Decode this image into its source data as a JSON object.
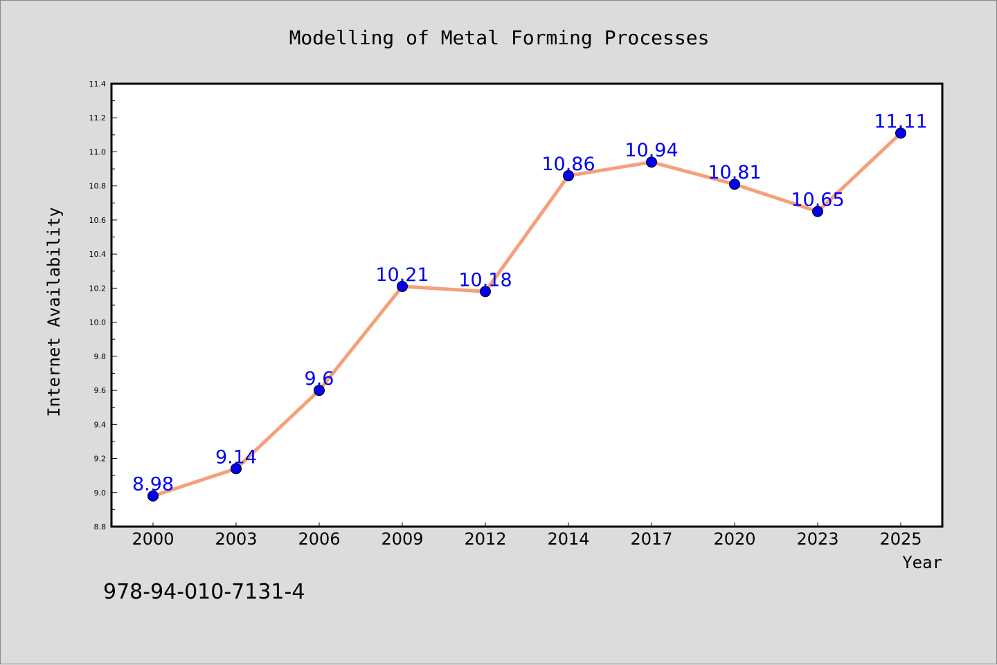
{
  "chart_data": {
    "type": "line",
    "title": "Modelling of Metal Forming Processes",
    "xlabel": "Year",
    "ylabel": "Internet Availability",
    "categories": [
      "2000",
      "2003",
      "2006",
      "2009",
      "2012",
      "2014",
      "2017",
      "2020",
      "2023",
      "2025"
    ],
    "series": [
      {
        "values": [
          8.98,
          9.14,
          9.6,
          10.21,
          10.18,
          10.86,
          10.94,
          10.81,
          10.65,
          11.11
        ],
        "data_labels": [
          "8.98",
          "9.14",
          "9.6",
          "10.21",
          "10.18",
          "10.86",
          "10.94",
          "10.81",
          "10.65",
          "11.11"
        ]
      }
    ],
    "ylim": [
      8.8,
      11.4
    ],
    "yticks": [
      "8.8",
      "9.0",
      "9.2",
      "9.4",
      "9.6",
      "9.8",
      "10.0",
      "10.2",
      "10.4",
      "10.6",
      "10.8",
      "11.0",
      "11.2",
      "11.4"
    ],
    "grid": false,
    "colors": {
      "line": "#f4a07a",
      "marker": "#0000ee",
      "label": "#0000ee",
      "background": "#dcdcdc",
      "plot_background": "#ffffff"
    }
  },
  "footer": {
    "isbn": "978-94-010-7131-4"
  }
}
